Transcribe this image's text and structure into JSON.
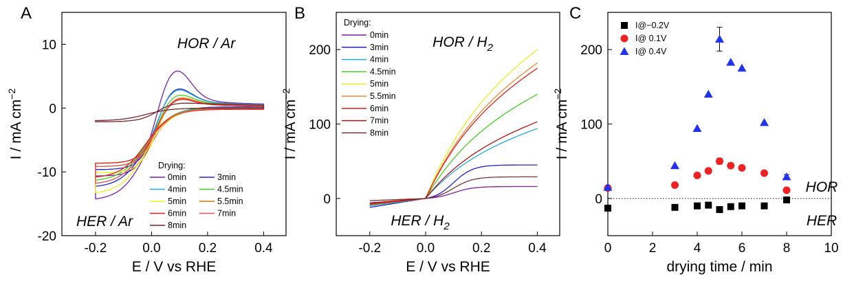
{
  "chart_data": [
    {
      "panel": "A",
      "type": "line",
      "xlabel": "E / V vs RHE",
      "ylabel": "I / mA cm",
      "ylabel_sup": "−2",
      "xlim": [
        -0.32,
        0.48
      ],
      "ylim": [
        -20,
        15
      ],
      "xticks": [
        -0.2,
        0.0,
        0.2,
        0.4
      ],
      "xtick_labels": [
        "-0.2",
        "0.0",
        "0.2",
        "0.4"
      ],
      "yticks": [
        -20,
        -10,
        0,
        10
      ],
      "ytick_labels": [
        "-20",
        "-10",
        "0",
        "10"
      ],
      "annotations": [
        "HOR / Ar",
        "HER / Ar"
      ],
      "legend_title": "Drying:",
      "legend_position": "bottom-right",
      "series": [
        {
          "name": "0min",
          "color": "#7a1fa2",
          "peak": 9.2,
          "tail": 0.7,
          "base": -10.5,
          "cathodic": -14.5
        },
        {
          "name": "3min",
          "color": "#2222cc",
          "peak": 5.0,
          "tail": 0.6,
          "base": -9.5,
          "cathodic": -12.5
        },
        {
          "name": "4min",
          "color": "#22aadd",
          "peak": 4.7,
          "tail": 0.6,
          "base": -9.0,
          "cathodic": -12.0
        },
        {
          "name": "4.5min",
          "color": "#44cc22",
          "peak": 3.5,
          "tail": 0.5,
          "base": -9.0,
          "cathodic": -11.5
        },
        {
          "name": "5min",
          "color": "#eeee22",
          "peak": 3.0,
          "tail": 0.4,
          "base": -10.0,
          "cathodic": -13.5
        },
        {
          "name": "5.5min",
          "color": "#cc7711",
          "peak": 2.7,
          "tail": 0.4,
          "base": -8.5,
          "cathodic": -11.0
        },
        {
          "name": "6min",
          "color": "#dd2222",
          "peak": 2.5,
          "tail": 0.3,
          "base": -8.5,
          "cathodic": -11.0
        },
        {
          "name": "7min",
          "color": "#ee5555",
          "peak": 2.8,
          "tail": 0.4,
          "base": -9.0,
          "cathodic": -12.0
        },
        {
          "name": "8min",
          "color": "#772222",
          "peak": 0.9,
          "tail": 0.5,
          "base": -2.0,
          "cathodic": -2.0
        }
      ]
    },
    {
      "panel": "B",
      "type": "line",
      "xlabel": "E / V vs RHE",
      "ylabel": "I / mA cm",
      "ylabel_sup": "−2",
      "xlim": [
        -0.32,
        0.48
      ],
      "ylim": [
        -50,
        250
      ],
      "xticks": [
        -0.2,
        0.0,
        0.2,
        0.4
      ],
      "xtick_labels": [
        "-0.2",
        "0.0",
        "0.2",
        "0.4"
      ],
      "yticks": [
        0,
        100,
        200
      ],
      "ytick_labels": [
        "0",
        "100",
        "200"
      ],
      "annotations": [
        "HOR / H",
        "HER / H"
      ],
      "annotation_sub": "2",
      "legend_title": "Drying:",
      "legend_position": "top-left",
      "series": [
        {
          "name": "0min",
          "color": "#7a1fa2",
          "end": 16,
          "start": -7
        },
        {
          "name": "3min",
          "color": "#2222cc",
          "end": 45,
          "start": -12
        },
        {
          "name": "4min",
          "color": "#22aadd",
          "end": 94,
          "start": -10
        },
        {
          "name": "4.5min",
          "color": "#44cc22",
          "end": 140,
          "start": -9
        },
        {
          "name": "5min",
          "color": "#eeee22",
          "end": 200,
          "start": -8
        },
        {
          "name": "5.5min",
          "color": "#ee8833",
          "end": 182,
          "start": -8
        },
        {
          "name": "6min",
          "color": "#dd2222",
          "end": 175,
          "start": -8
        },
        {
          "name": "7min",
          "color": "#aa1111",
          "end": 103,
          "start": -6
        },
        {
          "name": "8min",
          "color": "#773333",
          "end": 29,
          "start": -3
        }
      ]
    },
    {
      "panel": "C",
      "type": "scatter",
      "xlabel": "drying time / min",
      "ylabel": "I / mA cm",
      "ylabel_sup": "−2",
      "xlim": [
        0,
        10
      ],
      "ylim": [
        -50,
        250
      ],
      "xticks": [
        0,
        2,
        4,
        6,
        8,
        10
      ],
      "xtick_labels": [
        "0",
        "2",
        "4",
        "6",
        "8",
        "10"
      ],
      "yticks": [
        0,
        100,
        200
      ],
      "ytick_labels": [
        "0",
        "100",
        "200"
      ],
      "annotations": [
        "HOR",
        "HER"
      ],
      "reference_line": 0,
      "legend_position": "top-left",
      "series": [
        {
          "name": "I@−0.2V",
          "color": "#000000",
          "marker": "square",
          "x": [
            0,
            3,
            4,
            4.5,
            5,
            5.5,
            6,
            7,
            8
          ],
          "y": [
            -13,
            -12,
            -10,
            -9,
            -15,
            -11,
            -10,
            -10,
            -2
          ],
          "err": [
            0,
            0,
            0,
            0,
            2,
            0,
            0,
            0,
            2
          ]
        },
        {
          "name": "I@ 0.1V",
          "color": "#ee2222",
          "marker": "circle",
          "x": [
            0,
            3,
            4,
            4.5,
            5,
            5.5,
            6,
            7,
            8
          ],
          "y": [
            14,
            18,
            31,
            37,
            50,
            44,
            41,
            34,
            11
          ],
          "err": [
            0,
            0,
            0,
            0,
            4,
            0,
            0,
            0,
            3
          ]
        },
        {
          "name": "I@ 0.4V",
          "color": "#2233ee",
          "marker": "triangle",
          "x": [
            0,
            3,
            4,
            4.5,
            5,
            5.5,
            6,
            7,
            8
          ],
          "y": [
            15,
            44,
            94,
            140,
            214,
            183,
            175,
            102,
            29
          ],
          "err": [
            0,
            0,
            0,
            0,
            16,
            0,
            0,
            0,
            3
          ]
        }
      ]
    }
  ]
}
